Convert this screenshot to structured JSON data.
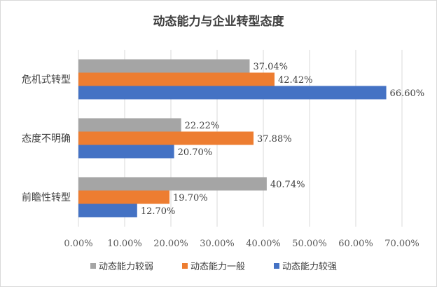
{
  "chart_data": {
    "type": "bar",
    "orientation": "horizontal",
    "title": "动态能力与企业转型态度",
    "categories": [
      "危机式转型",
      "态度不明确",
      "前瞻性转型"
    ],
    "series": [
      {
        "name": "动态能力较弱",
        "color": "#a5a5a5",
        "values": [
          37.04,
          22.22,
          40.74
        ],
        "labels": [
          "37.04%",
          "22.22%",
          "40.74%"
        ]
      },
      {
        "name": "动态能力一般",
        "color": "#ed7d31",
        "values": [
          42.42,
          37.88,
          19.7
        ],
        "labels": [
          "42.42%",
          "37.88%",
          "19.70%"
        ]
      },
      {
        "name": "动态能力较强",
        "color": "#4472c4",
        "values": [
          66.6,
          20.7,
          12.7
        ],
        "labels": [
          "66.60%",
          "20.70%",
          "12.70%"
        ]
      }
    ],
    "xlim": [
      0,
      70
    ],
    "xticks": [
      0,
      10,
      20,
      30,
      40,
      50,
      60,
      70
    ],
    "xtick_labels": [
      "0.00%",
      "10.00%",
      "20.00%",
      "30.00%",
      "40.00%",
      "50.00%",
      "60.00%",
      "70.00%"
    ],
    "grid": true,
    "legend_position": "bottom"
  }
}
